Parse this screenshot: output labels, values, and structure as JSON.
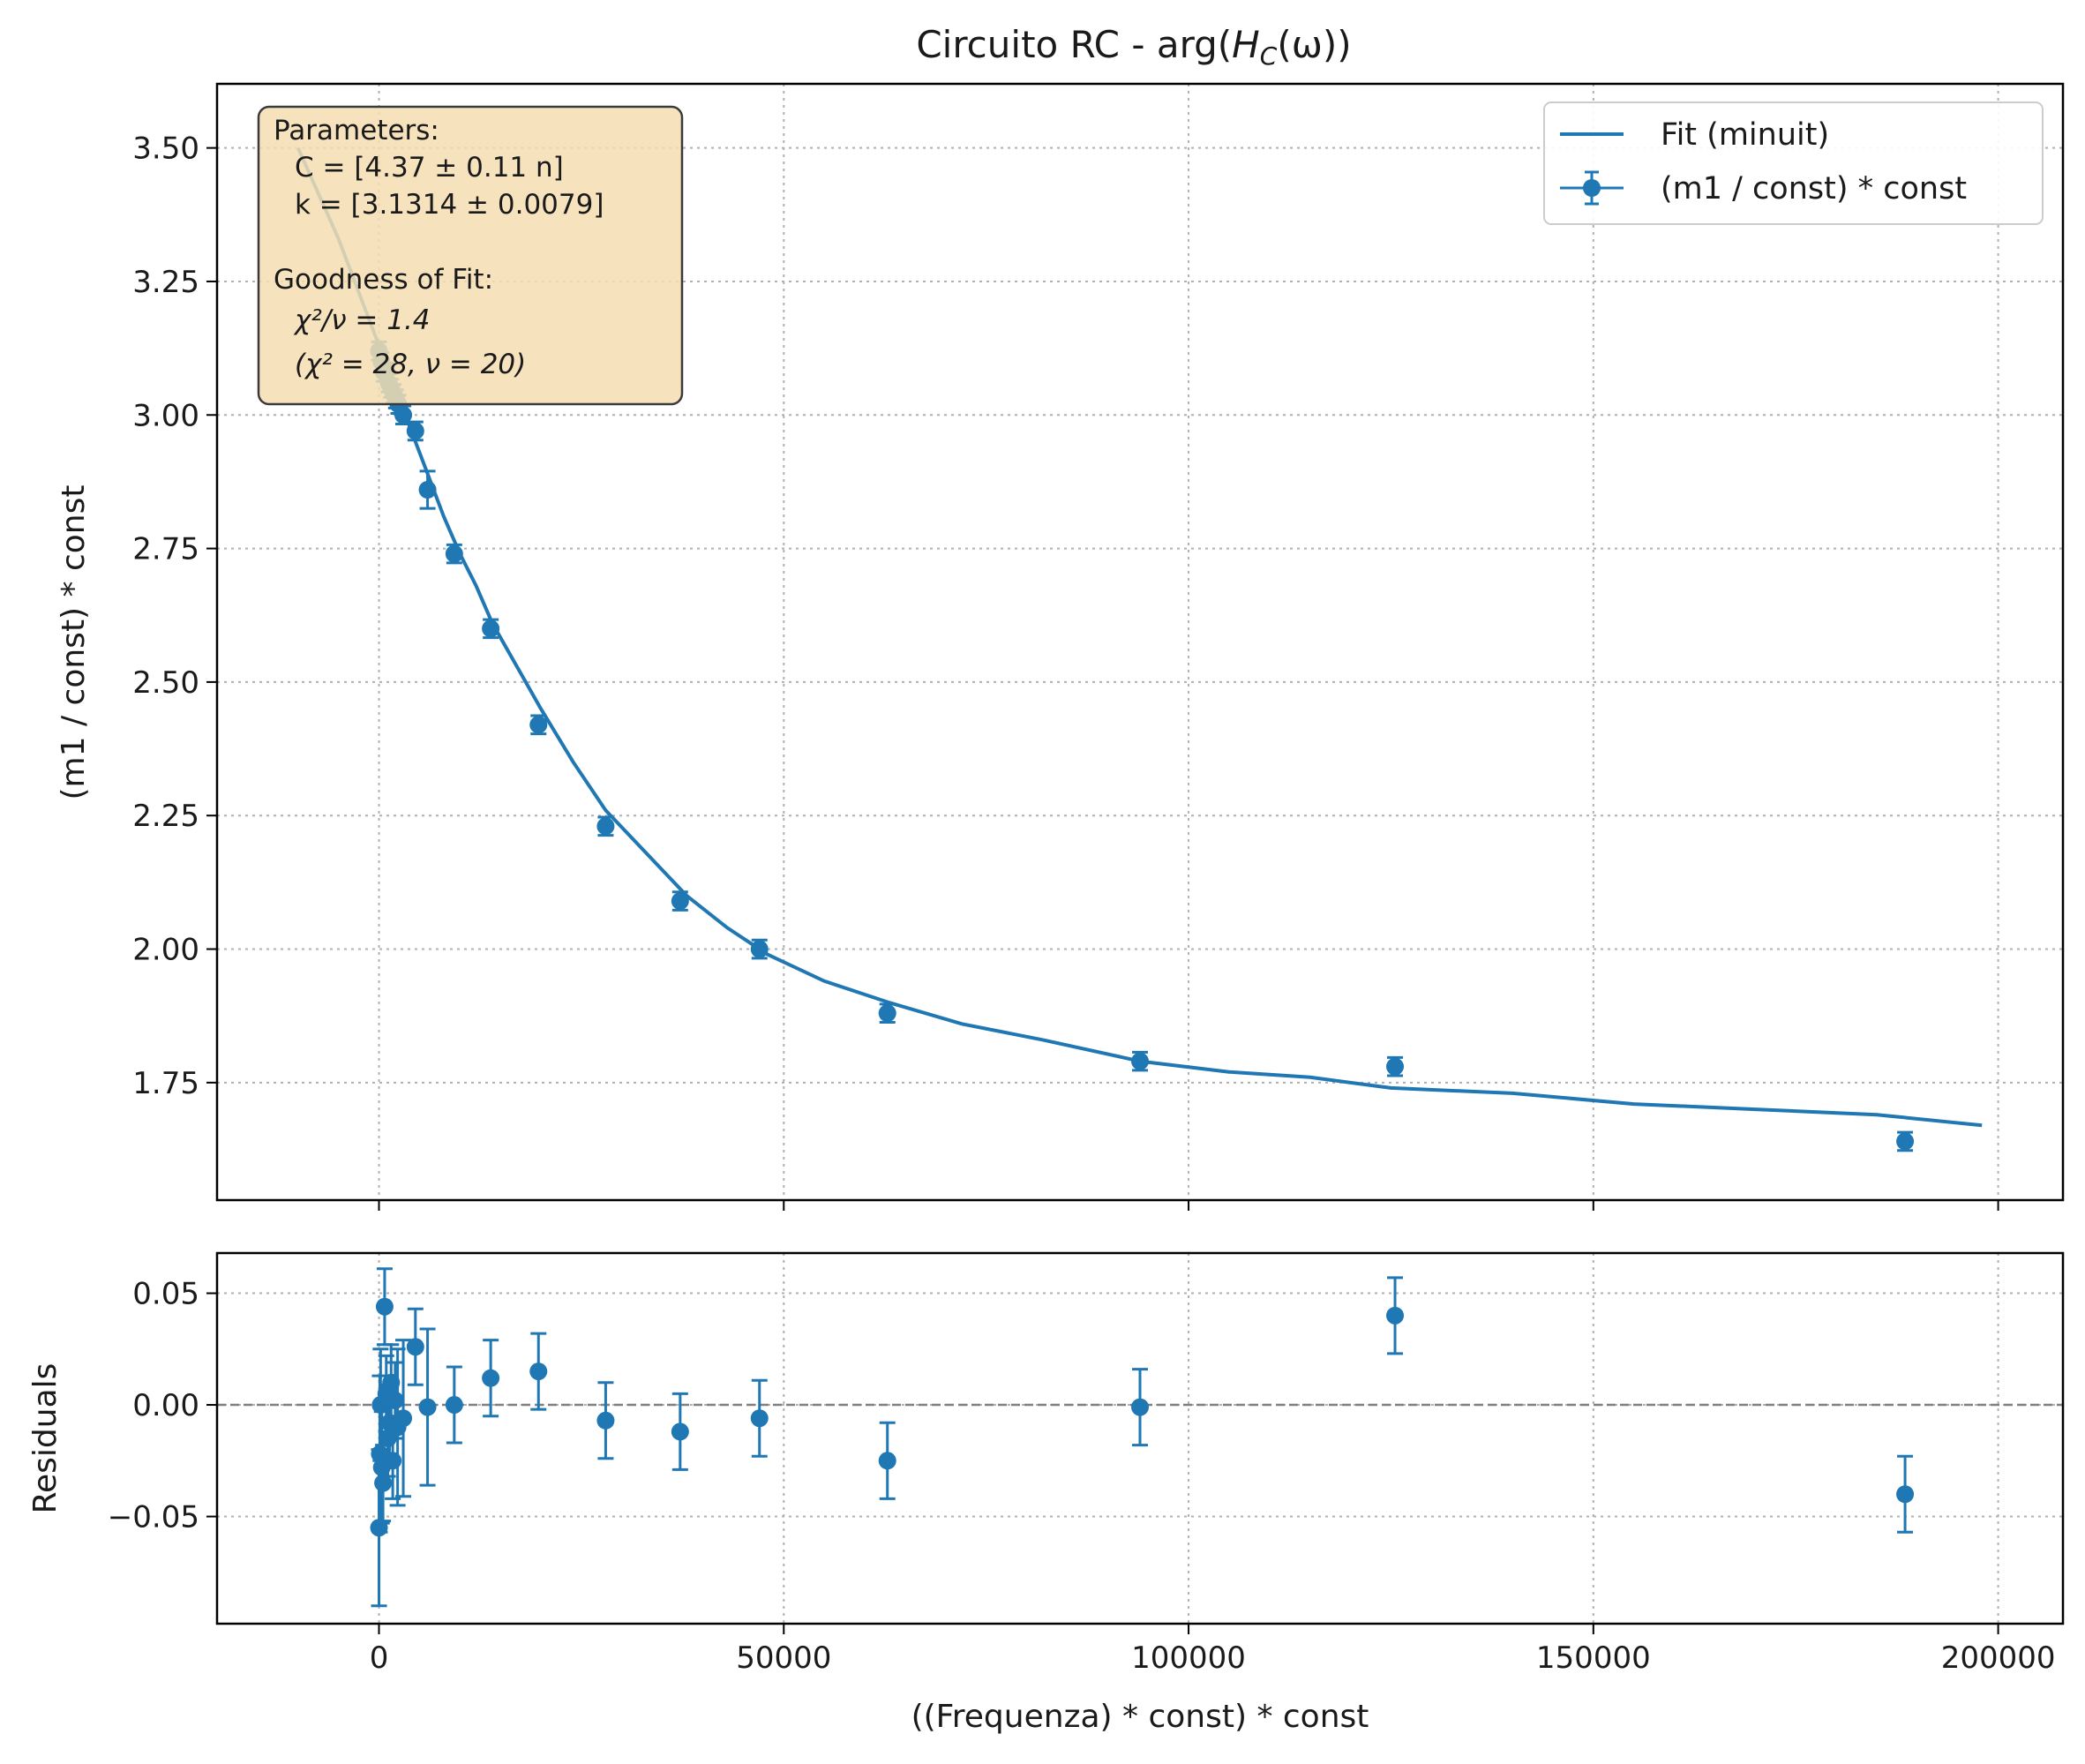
{
  "chart_data": [
    {
      "type": "scatter",
      "title": "Circuito RC - arg(",
      "title_math": "H",
      "title_sub": "C",
      "title_tail": "(ω))",
      "xlabel": "",
      "ylabel": "(m1 / const) * const",
      "xlim": [
        -20000,
        208000
      ],
      "ylim": [
        1.53,
        3.62
      ],
      "yticks": [
        "1.75",
        "2.00",
        "2.25",
        "2.50",
        "2.75",
        "3.00",
        "3.25",
        "3.50"
      ],
      "ytick_values": [
        1.75,
        2.0,
        2.25,
        2.5,
        2.75,
        3.0,
        3.25,
        3.5
      ],
      "xtick_values": [
        0,
        50000,
        100000,
        150000,
        200000
      ],
      "grid": true,
      "legend_position": "upper-right",
      "series": [
        {
          "name": "Fit (minuit)",
          "kind": "line",
          "color": "#1f77b4",
          "model": "C = 4.37e-9, k = 3.1314",
          "x": [
            -10000,
            -5000,
            0,
            500,
            1000,
            2000,
            3000,
            4000,
            5000,
            6000,
            8000,
            10000,
            12000,
            14000,
            17000,
            20000,
            24000,
            28000,
            33000,
            38000,
            43000,
            48000,
            55000,
            63000,
            72000,
            82000,
            94000,
            105000,
            115000,
            125000,
            140000,
            155000,
            170000,
            185000,
            198000
          ],
          "y": [
            3.5,
            3.33,
            3.13,
            3.11,
            3.09,
            3.05,
            3.01,
            2.97,
            2.93,
            2.89,
            2.81,
            2.74,
            2.68,
            2.61,
            2.53,
            2.45,
            2.35,
            2.26,
            2.18,
            2.1,
            2.04,
            1.99,
            1.94,
            1.9,
            1.86,
            1.83,
            1.79,
            1.77,
            1.76,
            1.74,
            1.73,
            1.71,
            1.7,
            1.69,
            1.67
          ]
        },
        {
          "name": "(m1 / const) * const",
          "kind": "errorbar",
          "color": "#1f77b4",
          "x": [
            0,
            300,
            600,
            900,
            1200,
            1500,
            1800,
            2100,
            2400,
            3000,
            4500,
            6000,
            9300,
            13800,
            19700,
            28000,
            37200,
            47000,
            62800,
            94000,
            125500,
            188500
          ],
          "y": [
            3.12,
            3.1,
            3.08,
            3.08,
            3.06,
            3.05,
            3.04,
            3.03,
            3.02,
            3.0,
            2.97,
            2.86,
            2.74,
            2.6,
            2.42,
            2.23,
            2.09,
            2.0,
            1.88,
            1.79,
            1.78,
            1.64
          ],
          "yerr": [
            0.017,
            0.017,
            0.017,
            0.017,
            0.017,
            0.017,
            0.017,
            0.017,
            0.017,
            0.017,
            0.017,
            0.035,
            0.017,
            0.017,
            0.017,
            0.017,
            0.017,
            0.017,
            0.017,
            0.017,
            0.017,
            0.017
          ]
        }
      ],
      "annotation": {
        "parameters_title": "Parameters:",
        "param_c": "C = [4.37 ± 0.11 n]",
        "param_k": "k = [3.1314 ± 0.0079]",
        "gof_title": "Goodness of Fit:",
        "chi_ratio": "χ²/ν = 1.4",
        "chi_values": "(χ² = 28, ν = 20)"
      }
    },
    {
      "type": "scatter",
      "title": "",
      "xlabel": "((Frequenza) * const) * const",
      "ylabel": "Residuals",
      "xlim": [
        -20000,
        208000
      ],
      "ylim": [
        -0.098,
        0.068
      ],
      "yticks": [
        "−0.05",
        "0.00",
        "0.05"
      ],
      "ytick_values": [
        -0.05,
        0.0,
        0.05
      ],
      "xticks": [
        "0",
        "50000",
        "100000",
        "150000",
        "200000"
      ],
      "xtick_values": [
        0,
        50000,
        100000,
        150000,
        200000
      ],
      "grid": true,
      "reference_line": 0,
      "series": [
        {
          "kind": "errorbar",
          "color": "#1f77b4",
          "x": [
            0,
            100,
            200,
            350,
            500,
            700,
            900,
            1100,
            1300,
            1500,
            1700,
            2000,
            2300,
            3000,
            4500,
            6000,
            9300,
            13800,
            19700,
            28000,
            37200,
            47000,
            62800,
            94000,
            125500,
            188500
          ],
          "y": [
            -0.055,
            -0.022,
            0.0,
            -0.028,
            -0.035,
            0.044,
            0.005,
            -0.015,
            -0.008,
            0.01,
            -0.025,
            0.002,
            -0.01,
            -0.006,
            0.026,
            -0.001,
            0.0,
            0.012,
            0.015,
            -0.007,
            -0.012,
            -0.006,
            -0.025,
            -0.001,
            0.04,
            -0.04
          ],
          "yerr": [
            0.035,
            0.035,
            0.025,
            0.025,
            0.017,
            0.017,
            0.017,
            0.017,
            0.017,
            0.017,
            0.017,
            0.017,
            0.035,
            0.035,
            0.017,
            0.035,
            0.017,
            0.017,
            0.017,
            0.017,
            0.017,
            0.017,
            0.017,
            0.017,
            0.017,
            0.017
          ]
        }
      ]
    }
  ]
}
